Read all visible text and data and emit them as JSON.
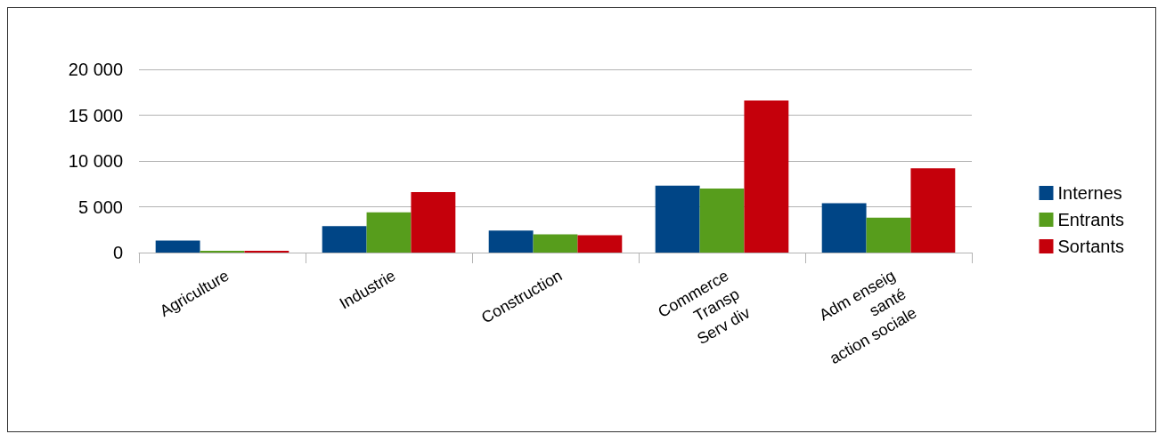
{
  "chart_data": {
    "type": "bar",
    "categories": [
      "Agriculture",
      "Industrie",
      "Construction",
      "Commerce\nTransp\nServ div",
      "Adm enseig\nsanté\naction sociale"
    ],
    "series": [
      {
        "name": "Internes",
        "color": "#004586",
        "values": [
          1300,
          2900,
          2400,
          7300,
          5400
        ]
      },
      {
        "name": "Entrants",
        "color": "#579d1c",
        "values": [
          200,
          4400,
          2000,
          7000,
          3800
        ]
      },
      {
        "name": "Sortants",
        "color": "#c5000b",
        "values": [
          200,
          6600,
          1900,
          16600,
          9200
        ]
      }
    ],
    "ylim": [
      0,
      20000
    ],
    "yticks": [
      {
        "value": 0,
        "label": "0"
      },
      {
        "value": 5000,
        "label": "5 000"
      },
      {
        "value": 10000,
        "label": "10 000"
      },
      {
        "value": 15000,
        "label": "15 000"
      },
      {
        "value": 20000,
        "label": "20 000"
      }
    ],
    "grid": "y",
    "legend": "right"
  }
}
